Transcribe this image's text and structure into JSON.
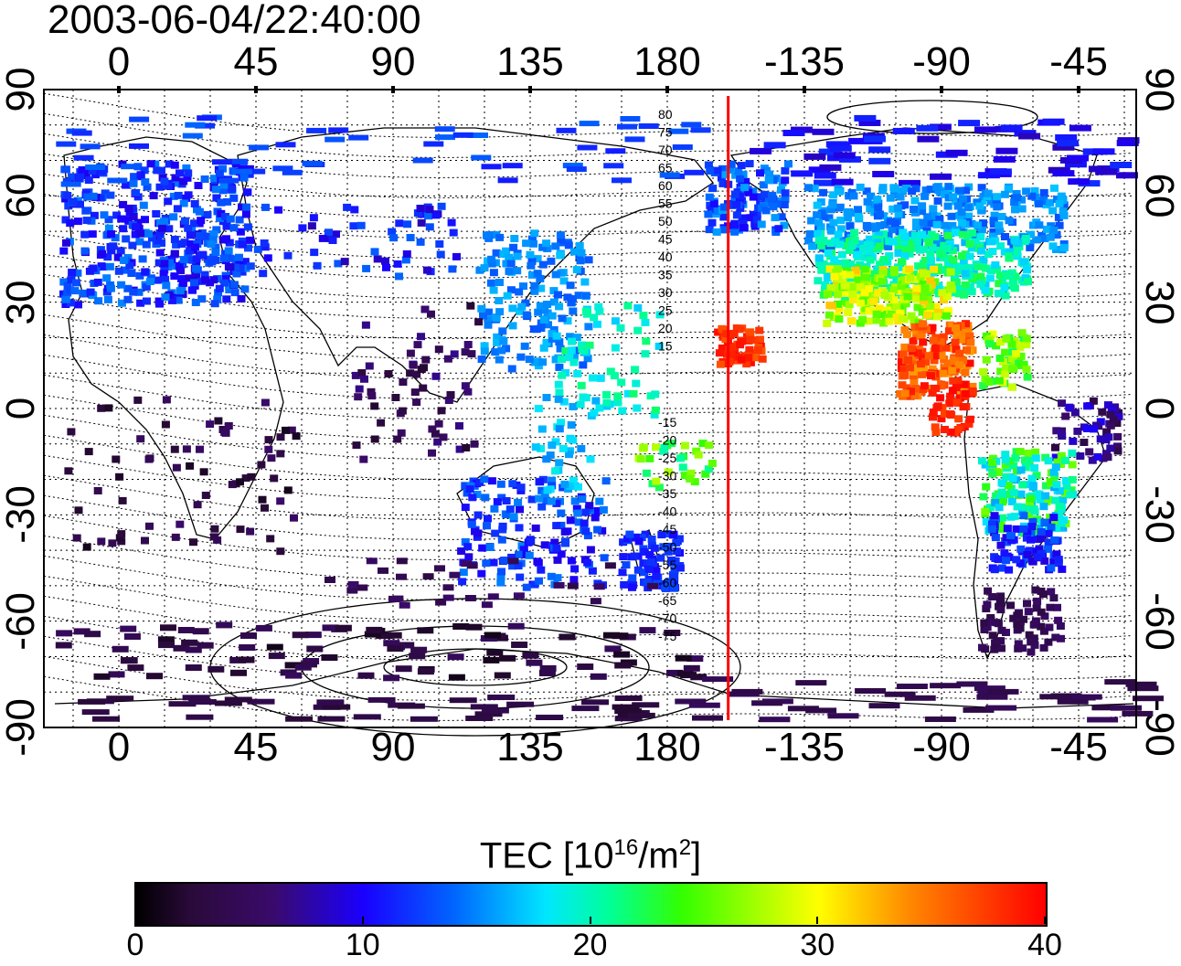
{
  "timestamp": "2003-06-04/22:40:00",
  "map": {
    "top_lon_ticks": [
      "0",
      "45",
      "90",
      "135",
      "180",
      "-135",
      "-90",
      "-45"
    ],
    "bottom_lon_ticks": [
      "0",
      "45",
      "90",
      "135",
      "180",
      "-135",
      "-90",
      "-45"
    ],
    "left_lat_ticks": [
      "90",
      "60",
      "30",
      "0",
      "-30",
      "-60",
      "-90"
    ],
    "right_lat_ticks": [
      "90",
      "60",
      "30",
      "0",
      "-30",
      "-60",
      "-90"
    ],
    "contour_labels_north": [
      "80",
      "75",
      "70",
      "65",
      "60",
      "55",
      "50",
      "45",
      "40",
      "35",
      "30",
      "25",
      "20",
      "15"
    ],
    "contour_labels_south": [
      "-15",
      "-20",
      "-25",
      "-30",
      "-35",
      "-40",
      "-45",
      "-50",
      "-55",
      "-60",
      "-65",
      "-70",
      "-75"
    ],
    "terminator_longitude": -160,
    "terminator_color": "#ff0000"
  },
  "colorbar": {
    "title_main": "TEC  [10",
    "title_exp": "16",
    "title_unit": "/m",
    "title_unit_exp": "2",
    "title_end": "]",
    "ticks": [
      "0",
      "10",
      "20",
      "30",
      "40"
    ],
    "range": [
      0,
      40
    ]
  }
}
